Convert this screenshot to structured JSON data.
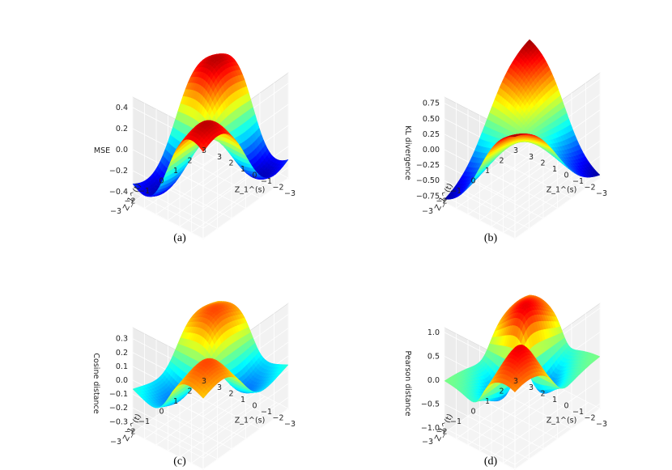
{
  "chart_data": [
    {
      "type": "surface3d",
      "caption": "(a)",
      "zlabel": "MSE",
      "xlabel": "Z_1^(s)",
      "ylabel": "Z_1^(t)",
      "x_ticks": [
        "3",
        "2",
        "1",
        "0",
        "−1",
        "−2",
        "−3"
      ],
      "y_ticks": [
        "−3",
        "−2",
        "−1",
        "0",
        "1",
        "2",
        "3"
      ],
      "z_ticks": [
        "0.4",
        "0.2",
        "0.0",
        "−0.2",
        "−0.4"
      ],
      "xlim": [
        -3,
        3
      ],
      "ylim": [
        -3,
        3
      ],
      "zlim": [
        -0.5,
        0.5
      ],
      "colormap": "jet"
    },
    {
      "type": "surface3d",
      "caption": "(b)",
      "zlabel": "KL divergence",
      "xlabel": "Z_1^(s)",
      "ylabel": "Z_1^(t)",
      "x_ticks": [
        "3",
        "2",
        "1",
        "0",
        "−1",
        "−2",
        "−3"
      ],
      "y_ticks": [
        "−3",
        "−2",
        "−1",
        "0",
        "1",
        "2",
        "3"
      ],
      "z_ticks": [
        "0.75",
        "0.50",
        "0.25",
        "0.00",
        "−0.25",
        "−0.50",
        "−0.75"
      ],
      "xlim": [
        -3,
        3
      ],
      "ylim": [
        -3,
        3
      ],
      "zlim": [
        -0.85,
        0.85
      ],
      "colormap": "jet"
    },
    {
      "type": "surface3d",
      "caption": "(c)",
      "zlabel": "Cosine distance",
      "xlabel": "Z_1^(s)",
      "ylabel": "Z_1^(t)",
      "x_ticks": [
        "3",
        "2",
        "1",
        "0",
        "−1",
        "−2",
        "−3"
      ],
      "y_ticks": [
        "−3",
        "−2",
        "−1",
        "0",
        "1",
        "2",
        "3"
      ],
      "z_ticks": [
        "0.3",
        "0.2",
        "0.1",
        "0.0",
        "−0.1",
        "−0.2",
        "−0.3"
      ],
      "xlim": [
        -3,
        3
      ],
      "ylim": [
        -3,
        3
      ],
      "zlim": [
        -0.38,
        0.38
      ],
      "colormap": "jet"
    },
    {
      "type": "surface3d",
      "caption": "(d)",
      "zlabel": "Pearson distance",
      "xlabel": "Z_1^(s)",
      "ylabel": "Z_1^(t)",
      "x_ticks": [
        "3",
        "2",
        "1",
        "0",
        "−1",
        "−2",
        "−3"
      ],
      "y_ticks": [
        "−3",
        "−2",
        "−1",
        "0",
        "1",
        "2",
        "3"
      ],
      "z_ticks": [
        "1.0",
        "0.5",
        "0.0",
        "−0.5",
        "−1.0"
      ],
      "xlim": [
        -3,
        3
      ],
      "ylim": [
        -3,
        3
      ],
      "zlim": [
        -1.1,
        1.1
      ],
      "colormap": "jet"
    }
  ]
}
